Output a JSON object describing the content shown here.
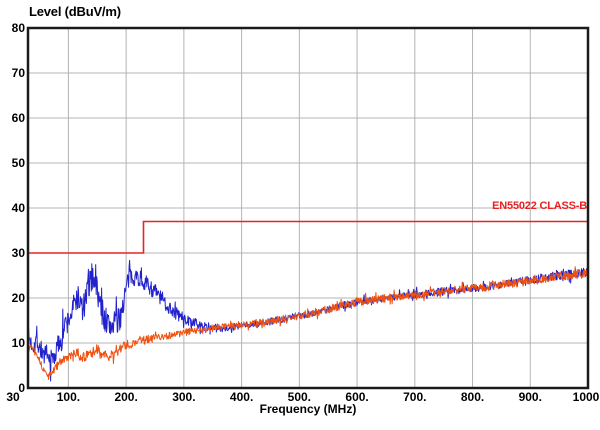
{
  "chart_data": {
    "type": "line",
    "title": "Level (dBuV/m)",
    "xlabel": "Frequency (MHz)",
    "ylabel": "Level (dBuV/m)",
    "xlim": [
      30,
      1000
    ],
    "ylim": [
      0,
      80
    ],
    "grid": true,
    "legend_position": "none",
    "x_tick_values": [
      30,
      100,
      200,
      300,
      400,
      500,
      600,
      700,
      800,
      900,
      1000
    ],
    "x_tick_labels": [
      "30",
      "100.",
      "200.",
      "300.",
      "400.",
      "500.",
      "600.",
      "700.",
      "800.",
      "900.",
      "1000"
    ],
    "y_tick_values": [
      0,
      10,
      20,
      30,
      40,
      50,
      60,
      70,
      80
    ],
    "y_tick_labels": [
      "0",
      "10",
      "20",
      "30",
      "40",
      "50",
      "60",
      "70",
      "80"
    ],
    "annotations": [
      {
        "text": "EN55022 CLASS-B",
        "x": 1000,
        "y": 38.5,
        "color": "#e82222",
        "anchor": "end"
      }
    ],
    "series": [
      {
        "name": "limit-line-en55022-class-b",
        "kind": "limit",
        "color": "#e82222",
        "points": [
          [
            30,
            30
          ],
          [
            230,
            30
          ],
          [
            230,
            37
          ],
          [
            1000,
            37
          ]
        ]
      },
      {
        "name": "emission-trace-blue",
        "kind": "noisy-measurement",
        "color": "#2222cc",
        "noise_seed": 7,
        "anchors": [
          [
            30,
            12
          ],
          [
            35,
            10
          ],
          [
            40,
            9.5
          ],
          [
            45,
            11
          ],
          [
            50,
            9
          ],
          [
            55,
            8
          ],
          [
            60,
            7
          ],
          [
            65,
            6.2
          ],
          [
            70,
            6.2
          ],
          [
            75,
            7
          ],
          [
            80,
            8.5
          ],
          [
            85,
            10.5
          ],
          [
            90,
            12.5
          ],
          [
            95,
            14
          ],
          [
            100,
            15
          ],
          [
            105,
            16.5
          ],
          [
            110,
            18.5
          ],
          [
            115,
            20.5
          ],
          [
            120,
            19
          ],
          [
            125,
            17.2
          ],
          [
            130,
            19.5
          ],
          [
            135,
            22.5
          ],
          [
            140,
            24.5
          ],
          [
            145,
            25
          ],
          [
            150,
            21.5
          ],
          [
            155,
            18.5
          ],
          [
            160,
            16.5
          ],
          [
            165,
            15
          ],
          [
            170,
            13.5
          ],
          [
            175,
            14
          ],
          [
            180,
            15.5
          ],
          [
            185,
            14
          ],
          [
            190,
            16
          ],
          [
            195,
            19
          ],
          [
            200,
            22
          ],
          [
            205,
            24.5
          ],
          [
            210,
            25
          ],
          [
            215,
            25
          ],
          [
            220,
            24.6
          ],
          [
            230,
            23.8
          ],
          [
            240,
            22.5
          ],
          [
            250,
            21.5
          ],
          [
            260,
            20
          ],
          [
            270,
            18.5
          ],
          [
            280,
            17.3
          ],
          [
            290,
            16.3
          ],
          [
            300,
            15.4
          ],
          [
            310,
            14.8
          ],
          [
            320,
            14.2
          ],
          [
            330,
            13.8
          ],
          [
            340,
            13.5
          ],
          [
            350,
            13.3
          ],
          [
            370,
            13.3
          ],
          [
            400,
            13.8
          ],
          [
            430,
            14.3
          ],
          [
            460,
            15
          ],
          [
            490,
            15.8
          ],
          [
            520,
            16.6
          ],
          [
            550,
            17.5
          ],
          [
            580,
            18.5
          ],
          [
            610,
            19.3
          ],
          [
            640,
            19.8
          ],
          [
            670,
            20.3
          ],
          [
            700,
            20.8
          ],
          [
            730,
            21.2
          ],
          [
            760,
            21.6
          ],
          [
            790,
            22
          ],
          [
            820,
            22.5
          ],
          [
            850,
            23
          ],
          [
            880,
            23.5
          ],
          [
            910,
            24.2
          ],
          [
            940,
            24.8
          ],
          [
            970,
            25.3
          ],
          [
            1000,
            26
          ]
        ],
        "noise_amp": [
          [
            30,
            2.2
          ],
          [
            70,
            2.5
          ],
          [
            100,
            2.8
          ],
          [
            130,
            3.2
          ],
          [
            150,
            3.2
          ],
          [
            175,
            3.4
          ],
          [
            200,
            2.6
          ],
          [
            230,
            1.8
          ],
          [
            260,
            1.8
          ],
          [
            290,
            1.5
          ],
          [
            310,
            1.1
          ],
          [
            340,
            0.9
          ],
          [
            400,
            0.8
          ],
          [
            600,
            0.8
          ],
          [
            800,
            0.9
          ],
          [
            1000,
            1.1
          ]
        ]
      },
      {
        "name": "emission-trace-orange",
        "kind": "noisy-measurement",
        "color": "#ee5110",
        "noise_seed": 13,
        "anchors": [
          [
            30,
            9.5
          ],
          [
            35,
            9.3
          ],
          [
            40,
            8.8
          ],
          [
            45,
            7.8
          ],
          [
            50,
            6.2
          ],
          [
            55,
            4.5
          ],
          [
            60,
            3.5
          ],
          [
            65,
            2.8
          ],
          [
            70,
            3
          ],
          [
            75,
            4
          ],
          [
            80,
            5
          ],
          [
            85,
            5.8
          ],
          [
            90,
            6.2
          ],
          [
            95,
            6.5
          ],
          [
            100,
            6.8
          ],
          [
            105,
            7.2
          ],
          [
            110,
            7.5
          ],
          [
            115,
            7.6
          ],
          [
            120,
            7.2
          ],
          [
            125,
            6.8
          ],
          [
            130,
            7
          ],
          [
            135,
            7.3
          ],
          [
            140,
            7.6
          ],
          [
            145,
            8.2
          ],
          [
            150,
            8.5
          ],
          [
            155,
            8.2
          ],
          [
            160,
            7.6
          ],
          [
            165,
            7
          ],
          [
            170,
            6.8
          ],
          [
            175,
            7.2
          ],
          [
            180,
            7.8
          ],
          [
            185,
            8.3
          ],
          [
            190,
            8.8
          ],
          [
            195,
            9.2
          ],
          [
            200,
            9.5
          ],
          [
            210,
            9.9
          ],
          [
            220,
            10.3
          ],
          [
            230,
            10.6
          ],
          [
            240,
            10.9
          ],
          [
            250,
            11.1
          ],
          [
            260,
            11.3
          ],
          [
            270,
            11.6
          ],
          [
            280,
            11.8
          ],
          [
            290,
            12
          ],
          [
            300,
            12.3
          ],
          [
            320,
            12.7
          ],
          [
            340,
            13.1
          ],
          [
            360,
            13.4
          ],
          [
            380,
            13.7
          ],
          [
            400,
            14
          ],
          [
            430,
            14.5
          ],
          [
            460,
            15.1
          ],
          [
            490,
            15.8
          ],
          [
            520,
            16.6
          ],
          [
            550,
            17.5
          ],
          [
            580,
            18.5
          ],
          [
            610,
            19.3
          ],
          [
            640,
            19.8
          ],
          [
            670,
            20.3
          ],
          [
            700,
            20.8
          ],
          [
            730,
            21.2
          ],
          [
            760,
            21.6
          ],
          [
            790,
            22
          ],
          [
            820,
            22.4
          ],
          [
            850,
            22.9
          ],
          [
            880,
            23.4
          ],
          [
            910,
            24
          ],
          [
            940,
            24.6
          ],
          [
            970,
            25.1
          ],
          [
            1000,
            25.7
          ]
        ],
        "noise_amp": [
          [
            30,
            0.7
          ],
          [
            60,
            0.6
          ],
          [
            90,
            0.8
          ],
          [
            110,
            1.0
          ],
          [
            140,
            1.2
          ],
          [
            170,
            1.2
          ],
          [
            200,
            1.1
          ],
          [
            250,
            0.9
          ],
          [
            300,
            0.8
          ],
          [
            400,
            0.8
          ],
          [
            600,
            0.9
          ],
          [
            800,
            0.9
          ],
          [
            1000,
            1.1
          ]
        ]
      }
    ]
  },
  "colors": {
    "background": "#ffffff",
    "grid": "#b4b4b4",
    "border": "#1b1b1b",
    "text": "#000000",
    "limit": "#e82222",
    "trace_blue": "#2222cc",
    "trace_orange": "#ee5110"
  }
}
